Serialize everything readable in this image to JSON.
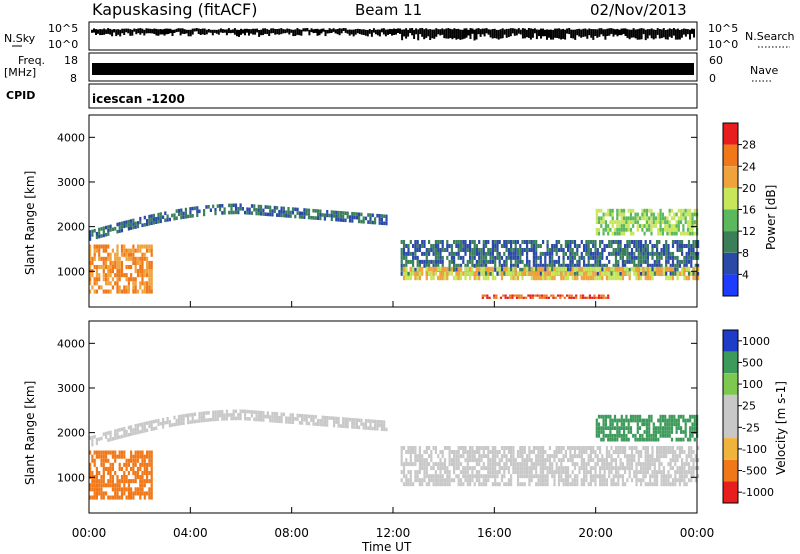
{
  "header": {
    "station": "Kapuskasing (fitACF)",
    "beam": "Beam 11",
    "date": "02/Nov/2013"
  },
  "top_strip": {
    "nsky_label": "N.Sky",
    "nsky_tick_top": "10^5",
    "nsky_tick_bottom": "10^0",
    "nsearch_label": "N.Search",
    "right_tick_top": "10^5",
    "right_tick_bottom": "10^0",
    "freq_label": "Freq.",
    "freq_unit": "[MHz]",
    "freq_tick_top": "18",
    "freq_tick_bottom": "8",
    "nave_label": "Nave",
    "nave_tick_top": "60",
    "nave_tick_bottom": "0",
    "cpid_label": "CPID",
    "cpid_value": "icescan -1200"
  },
  "colors": {
    "power": [
      "#1e3cff",
      "#2b4aa8",
      "#3a7f5a",
      "#5cb85c",
      "#c8e65a",
      "#f0a23c",
      "#f07818",
      "#e81e1e"
    ],
    "velocity": [
      "#e81e1e",
      "#f07818",
      "#f0b43c",
      "#c8c8c8",
      "#c8c8c8",
      "#7fc850",
      "#3c9a5a",
      "#1e3cc8"
    ]
  },
  "chart_data": [
    {
      "type": "heatmap",
      "name": "power-panel",
      "ylabel": "Slant Range [km]",
      "ylim": [
        200,
        4500
      ],
      "y_ticks": [
        "1000",
        "2000",
        "3000",
        "4000"
      ],
      "colorbar_label": "Power [dB]",
      "colorbar_ticks": [
        "4",
        "8",
        "12",
        "16",
        "20",
        "24",
        "28"
      ],
      "colorbar_range": [
        0,
        32
      ],
      "features": [
        {
          "kind": "band",
          "t_start": 0.0,
          "t_end": 2.5,
          "range_low": 500,
          "range_high": 1600,
          "value": 24
        },
        {
          "kind": "arc",
          "t_start": 0.0,
          "t_end": 11.7,
          "range_start": 1800,
          "range_peak": 2400,
          "t_peak": 6.0,
          "range_end": 2150,
          "value": 8
        },
        {
          "kind": "band",
          "t_start": 12.3,
          "t_end": 24.0,
          "range_low": 900,
          "range_high": 1700,
          "value": 8
        },
        {
          "kind": "band",
          "t_start": 12.3,
          "t_end": 24.0,
          "range_low": 800,
          "range_high": 1100,
          "value": 20
        },
        {
          "kind": "band",
          "t_start": 15.5,
          "t_end": 20.5,
          "range_low": 380,
          "range_high": 480,
          "value": 28
        },
        {
          "kind": "band",
          "t_start": 20.0,
          "t_end": 24.0,
          "range_low": 1800,
          "range_high": 2400,
          "value": 16
        }
      ]
    },
    {
      "type": "heatmap",
      "name": "velocity-panel",
      "ylabel": "Slant Range [km]",
      "ylim": [
        200,
        4500
      ],
      "y_ticks": [
        "1000",
        "2000",
        "3000",
        "4000"
      ],
      "colorbar_label": "Velocity [m s-1]",
      "colorbar_ticks": [
        "1000",
        "500",
        "100",
        "25",
        "-25",
        "-100",
        "-500",
        "-1000"
      ],
      "features": [
        {
          "kind": "band",
          "t_start": 0.0,
          "t_end": 2.5,
          "range_low": 500,
          "range_high": 1600,
          "value": -300
        },
        {
          "kind": "arc",
          "t_start": 0.0,
          "t_end": 11.7,
          "range_start": 1800,
          "range_peak": 2400,
          "t_peak": 6.0,
          "range_end": 2150,
          "value": 0
        },
        {
          "kind": "band",
          "t_start": 12.3,
          "t_end": 24.0,
          "range_low": 800,
          "range_high": 1700,
          "value": 0
        },
        {
          "kind": "band",
          "t_start": 20.0,
          "t_end": 24.0,
          "range_low": 1800,
          "range_high": 2400,
          "value": 200
        }
      ]
    }
  ],
  "x_axis": {
    "label": "Time UT",
    "ticks": [
      "00:00",
      "04:00",
      "08:00",
      "12:00",
      "16:00",
      "20:00",
      "00:00"
    ]
  }
}
